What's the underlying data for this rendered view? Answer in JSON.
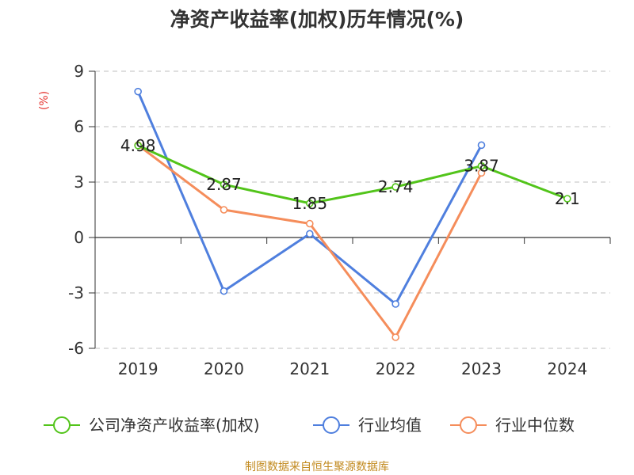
{
  "chart_data": {
    "type": "line",
    "title": "净资产收益率(加权)历年情况(%)",
    "ylabel": "(%)",
    "xlabel": "",
    "categories": [
      "2019",
      "2020",
      "2021",
      "2022",
      "2023",
      "2024"
    ],
    "ylim": [
      -6,
      9
    ],
    "yticks": [
      9,
      6,
      3,
      0,
      -3,
      -6
    ],
    "grid": "horizontal-dashed",
    "legend_position": "bottom",
    "series": [
      {
        "name": "公司净资产收益率(加权)",
        "color": "#52c41a",
        "values": [
          4.98,
          2.87,
          1.85,
          2.74,
          3.87,
          2.1
        ],
        "labels": [
          "4.98",
          "2.87",
          "1.85",
          "2.74",
          "3.87",
          "2.1"
        ]
      },
      {
        "name": "行业均值",
        "color": "#4f7fde",
        "values": [
          7.9,
          -2.9,
          0.2,
          -3.6,
          5.0,
          null
        ]
      },
      {
        "name": "行业中位数",
        "color": "#f58d5b",
        "values": [
          5.0,
          1.5,
          0.75,
          -5.4,
          3.5,
          null
        ]
      }
    ]
  },
  "source": "制图数据来自恒生聚源数据库"
}
